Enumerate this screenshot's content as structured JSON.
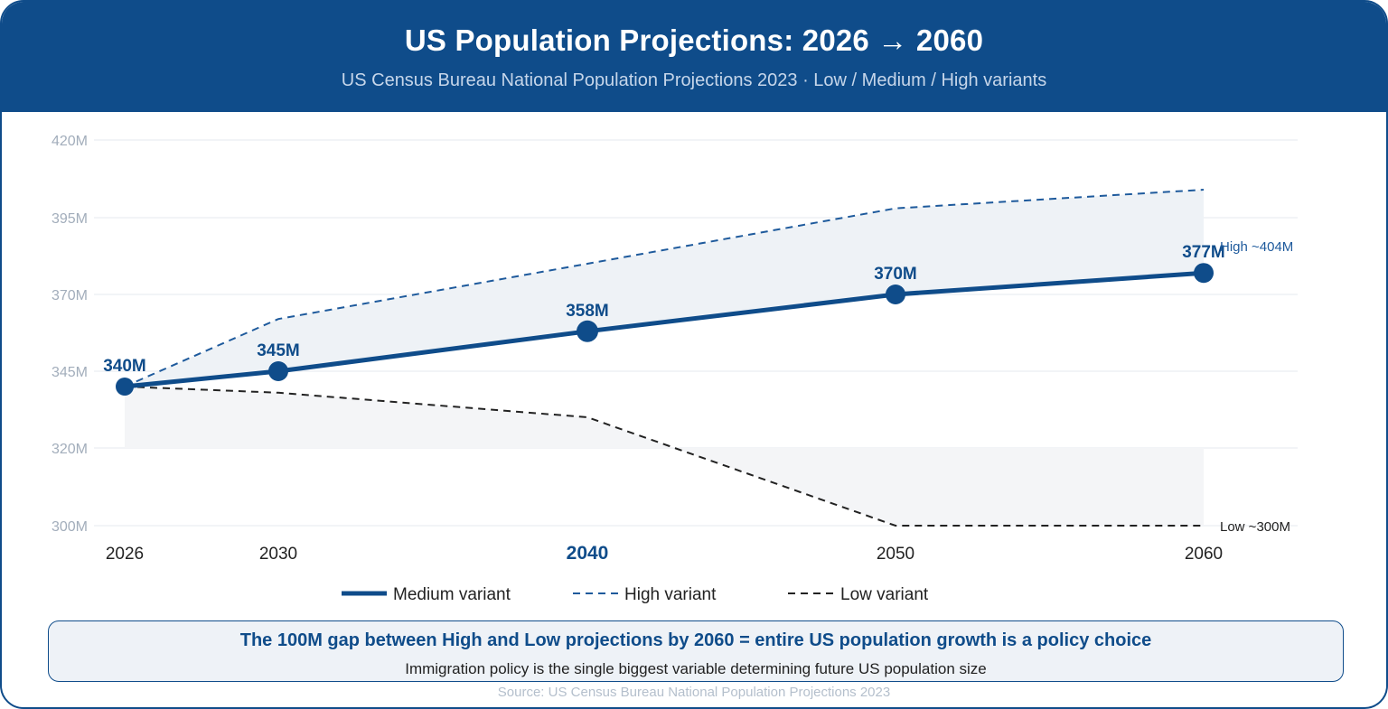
{
  "header": {
    "title": "US Population Projections: 2026 → 2060",
    "subtitle": "US Census Bureau National Population Projections 2023 · Low / Medium / High variants"
  },
  "chart_data": {
    "type": "line",
    "x": [
      "2026",
      "2030",
      "2040",
      "2050",
      "2060"
    ],
    "x_highlight": "2040",
    "y_ticks": [
      {
        "value": 300,
        "label": "300M"
      },
      {
        "value": 320,
        "label": "320M"
      },
      {
        "value": 345,
        "label": "345M"
      },
      {
        "value": 370,
        "label": "370M"
      },
      {
        "value": 395,
        "label": "395M"
      },
      {
        "value": 420,
        "label": "420M"
      }
    ],
    "series": [
      {
        "name": "Medium variant",
        "style": "solid",
        "color": "#0f4c8a",
        "values": [
          340,
          345,
          358,
          370,
          377
        ],
        "data_labels": [
          "340M",
          "345M",
          "358M",
          "370M",
          "377M"
        ]
      },
      {
        "name": "High variant",
        "style": "dashed",
        "color": "#1e5a9c",
        "values": [
          340,
          362,
          380,
          398,
          404
        ],
        "end_label": "High ~404M"
      },
      {
        "name": "Low variant",
        "style": "dashed",
        "color": "#222222",
        "values": [
          340,
          338,
          330,
          300,
          300
        ],
        "end_label": "Low ~300M"
      }
    ],
    "grid": true,
    "legend_position": "bottom"
  },
  "callout": {
    "headline": "The 100M gap between High and Low projections by 2060 = entire US population growth is a policy choice",
    "detail": "Immigration policy is the single biggest variable determining future US population size"
  },
  "source": "Source: US Census Bureau National Population Projections 2023",
  "colors": {
    "brand": "#0f4c8a",
    "band_fill": "#eef2f6",
    "low_fill": "#f4f5f7",
    "grid": "#e6eaef",
    "tick_text": "#a2adbb"
  }
}
